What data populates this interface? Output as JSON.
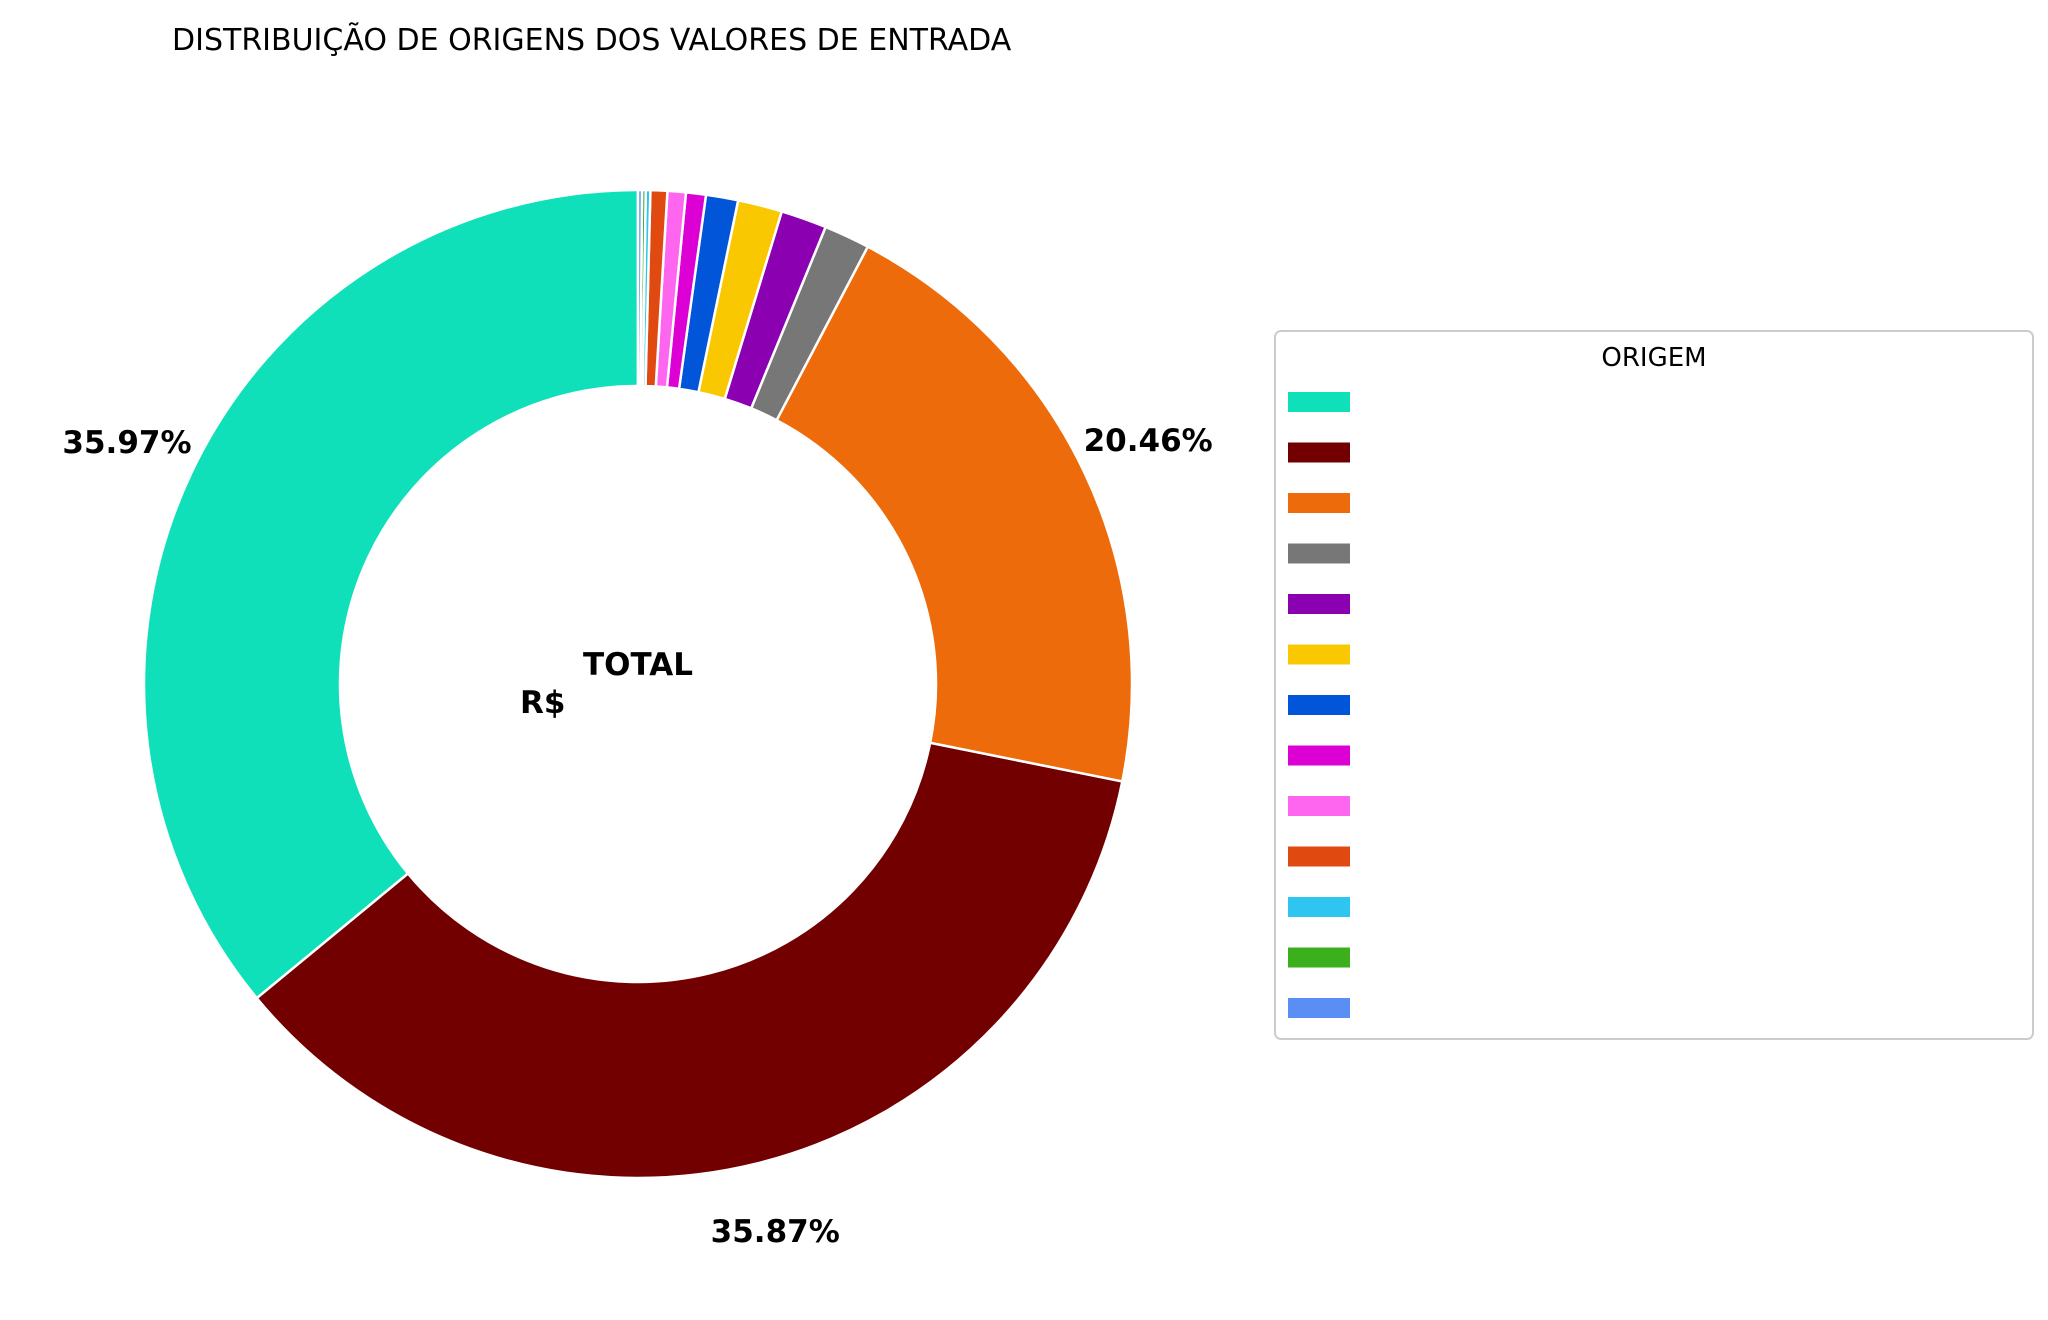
{
  "chart_data": {
    "type": "pie",
    "title": "DISTRIBUIÇÃO DE ORIGENS DOS VALORES DE ENTRADA",
    "center_label": "TOTAL",
    "center_value": "R$",
    "legend_title": "ORIGEM",
    "legend_position": "right",
    "donut": true,
    "start_angle_deg": 90,
    "direction": "counterclockwise",
    "slices": [
      {
        "value": 35.97,
        "label": "35.97%",
        "color": "#10e0b9",
        "legend": ""
      },
      {
        "value": 35.87,
        "label": "35.87%",
        "color": "#720000",
        "legend": ""
      },
      {
        "value": 20.46,
        "label": "20.46%",
        "color": "#ed6b0a",
        "legend": ""
      },
      {
        "value": 1.5,
        "label": "",
        "color": "#777777",
        "legend": ""
      },
      {
        "value": 1.5,
        "label": "",
        "color": "#8b00b0",
        "legend": ""
      },
      {
        "value": 1.45,
        "label": "",
        "color": "#fac800",
        "legend": ""
      },
      {
        "value": 1.05,
        "label": "",
        "color": "#0055d8",
        "legend": ""
      },
      {
        "value": 0.65,
        "label": "",
        "color": "#dc00d4",
        "legend": ""
      },
      {
        "value": 0.6,
        "label": "",
        "color": "#ff66f0",
        "legend": ""
      },
      {
        "value": 0.55,
        "label": "",
        "color": "#e04a10",
        "legend": ""
      },
      {
        "value": 0.15,
        "label": "",
        "color": "#2ec5f0",
        "legend": ""
      },
      {
        "value": 0.12,
        "label": "",
        "color": "#3caf1c",
        "legend": ""
      },
      {
        "value": 0.13,
        "label": "",
        "color": "#5b8ef5",
        "legend": ""
      }
    ]
  }
}
